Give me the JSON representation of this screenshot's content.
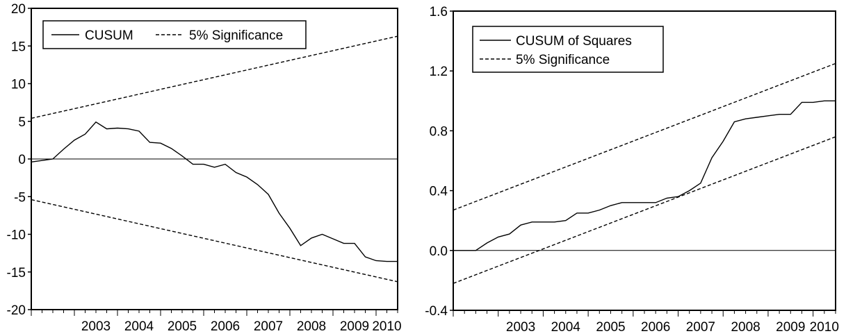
{
  "chart_data": [
    {
      "type": "line",
      "title": "",
      "xlabel": "",
      "ylabel": "",
      "ylim": [
        -20,
        20
      ],
      "xlim": [
        2002.0,
        2010.5
      ],
      "y_ticks": [
        -20,
        -15,
        -10,
        -5,
        0,
        5,
        10,
        15,
        20
      ],
      "y_tick_labels": [
        "-20",
        "-15",
        "-10",
        "-5",
        "0",
        "5",
        "10",
        "15",
        "20"
      ],
      "x_ticks": [
        2003,
        2004,
        2005,
        2006,
        2007,
        2008,
        2009,
        2010
      ],
      "x_tick_labels": [
        "2003",
        "2004",
        "2005",
        "2006",
        "2007",
        "2008",
        "2009",
        "2010"
      ],
      "legend": {
        "position": "top-left",
        "entries": [
          "CUSUM",
          "5% Significance"
        ]
      },
      "zero_line": true,
      "series": [
        {
          "name": "CUSUM",
          "style": "solid",
          "x": [
            2002.0,
            2002.25,
            2002.5,
            2002.75,
            2003.0,
            2003.25,
            2003.5,
            2003.75,
            2004.0,
            2004.25,
            2004.5,
            2004.75,
            2005.0,
            2005.25,
            2005.5,
            2005.75,
            2006.0,
            2006.25,
            2006.5,
            2006.75,
            2007.0,
            2007.25,
            2007.5,
            2007.75,
            2008.0,
            2008.25,
            2008.5,
            2008.75,
            2009.0,
            2009.25,
            2009.5,
            2009.75,
            2010.0,
            2010.25,
            2010.5
          ],
          "y": [
            -0.4,
            -0.2,
            0.0,
            1.3,
            2.5,
            3.3,
            4.9,
            4.0,
            4.1,
            4.0,
            3.7,
            2.2,
            2.1,
            1.4,
            0.4,
            -0.7,
            -0.7,
            -1.1,
            -0.7,
            -1.8,
            -2.4,
            -3.4,
            -4.7,
            -7.2,
            -9.2,
            -11.5,
            -10.5,
            -10.0,
            -10.6,
            -11.2,
            -11.2,
            -13.0,
            -13.5,
            -13.6,
            -13.6
          ]
        },
        {
          "name": "5% Significance",
          "style": "dashed",
          "x": [
            2002.0,
            2010.5
          ],
          "y": [
            5.4,
            16.3
          ]
        },
        {
          "name": "5% Significance",
          "style": "dashed",
          "x": [
            2002.0,
            2010.5
          ],
          "y": [
            -5.4,
            -16.3
          ]
        }
      ]
    },
    {
      "type": "line",
      "title": "",
      "xlabel": "",
      "ylabel": "",
      "ylim": [
        -0.4,
        1.6
      ],
      "xlim": [
        2002.0,
        2010.5
      ],
      "y_ticks": [
        -0.4,
        0.0,
        0.4,
        0.8,
        1.2,
        1.6
      ],
      "y_tick_labels": [
        "-0.4",
        "0.0",
        "0.4",
        "0.8",
        "1.2",
        "1.6"
      ],
      "x_ticks": [
        2003,
        2004,
        2005,
        2006,
        2007,
        2008,
        2009,
        2010
      ],
      "x_tick_labels": [
        "2003",
        "2004",
        "2005",
        "2006",
        "2007",
        "2008",
        "2009",
        "2010"
      ],
      "legend": {
        "position": "top-left",
        "entries": [
          "CUSUM of Squares",
          "5% Significance"
        ]
      },
      "zero_line": true,
      "series": [
        {
          "name": "CUSUM of Squares",
          "style": "solid",
          "x": [
            2002.0,
            2002.25,
            2002.5,
            2002.75,
            2003.0,
            2003.25,
            2003.5,
            2003.75,
            2004.0,
            2004.25,
            2004.5,
            2004.75,
            2005.0,
            2005.25,
            2005.5,
            2005.75,
            2006.0,
            2006.25,
            2006.5,
            2006.75,
            2007.0,
            2007.25,
            2007.5,
            2007.75,
            2008.0,
            2008.25,
            2008.5,
            2008.75,
            2009.0,
            2009.25,
            2009.5,
            2009.75,
            2010.0,
            2010.25,
            2010.5
          ],
          "y": [
            0.0,
            0.0,
            0.0,
            0.05,
            0.09,
            0.11,
            0.17,
            0.19,
            0.19,
            0.19,
            0.2,
            0.25,
            0.25,
            0.27,
            0.3,
            0.32,
            0.32,
            0.32,
            0.32,
            0.35,
            0.36,
            0.4,
            0.45,
            0.62,
            0.73,
            0.86,
            0.88,
            0.89,
            0.9,
            0.91,
            0.91,
            0.99,
            0.99,
            1.0,
            1.0
          ]
        },
        {
          "name": "5% Significance",
          "style": "dashed",
          "x": [
            2002.0,
            2010.5
          ],
          "y": [
            0.27,
            1.25
          ]
        },
        {
          "name": "5% Significance",
          "style": "dashed",
          "x": [
            2002.0,
            2010.5
          ],
          "y": [
            -0.22,
            0.76
          ]
        }
      ]
    }
  ]
}
